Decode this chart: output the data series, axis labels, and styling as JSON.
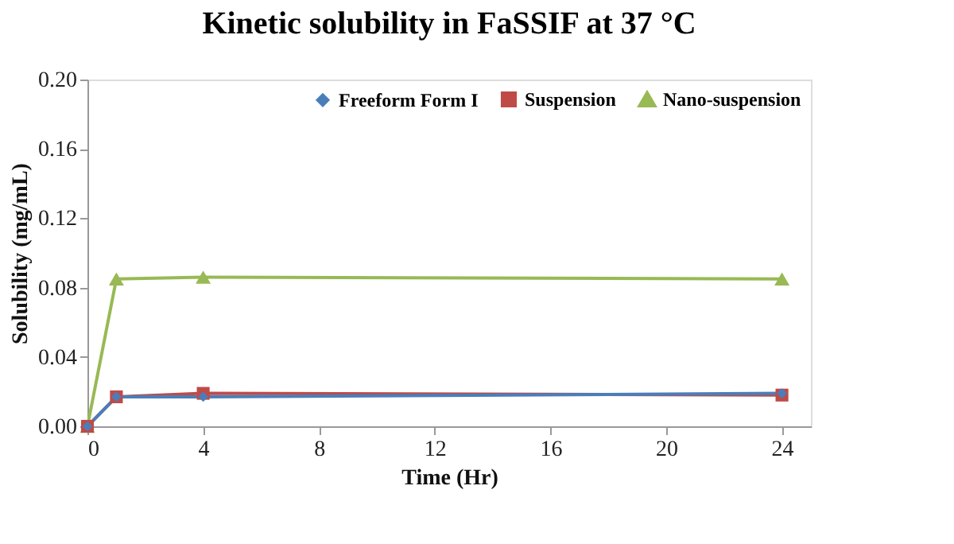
{
  "chart_data": {
    "type": "line",
    "title": "Kinetic solubility in FaSSIF at 37 °C",
    "xlabel": "Time (Hr)",
    "ylabel": "Solubility (mg/mL)",
    "x": [
      0,
      1,
      4,
      24
    ],
    "series": [
      {
        "name": "Freeform Form I",
        "color": "#4a7ebb",
        "marker": "diamond",
        "values": [
          0,
          0.017,
          0.017,
          0.019
        ]
      },
      {
        "name": "Suspension",
        "color": "#be4b48",
        "marker": "square",
        "values": [
          0,
          0.017,
          0.019,
          0.018
        ]
      },
      {
        "name": "Nano-suspension",
        "color": "#98b954",
        "marker": "triangle",
        "values": [
          0,
          0.085,
          0.086,
          0.085
        ]
      }
    ],
    "xlim": [
      0,
      25
    ],
    "xticks": [
      0,
      4,
      8,
      12,
      16,
      20,
      24
    ],
    "ylim": [
      0,
      0.2
    ],
    "yticks": [
      {
        "value": 0,
        "label": "0.00"
      },
      {
        "value": 0.04,
        "label": "0.04"
      },
      {
        "value": 0.08,
        "label": "0.08"
      },
      {
        "value": 0.12,
        "label": "0.12"
      },
      {
        "value": 0.16,
        "label": "0.16"
      },
      {
        "value": 0.2,
        "label": "0.20"
      }
    ],
    "grid": false,
    "legend": "top right"
  }
}
